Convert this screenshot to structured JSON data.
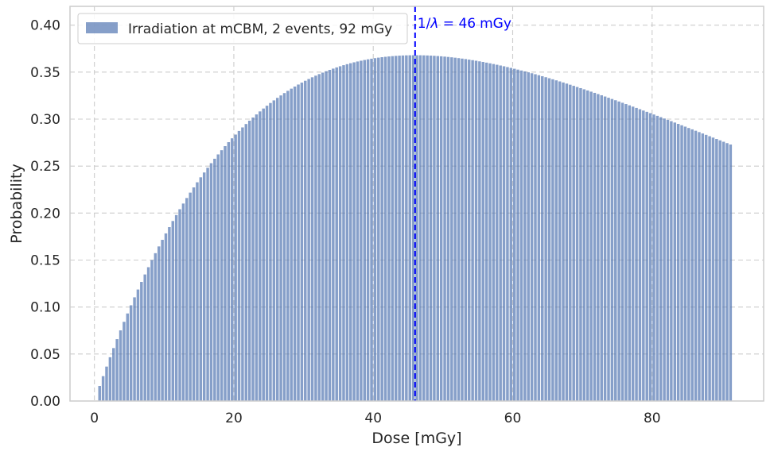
{
  "chart_data": {
    "type": "bar",
    "title": "",
    "xlabel": "Dose [mGy]",
    "ylabel": "Probability",
    "xlim": [
      -3.5,
      96
    ],
    "ylim": [
      0,
      0.42
    ],
    "xticks": [
      0,
      20,
      40,
      60,
      80
    ],
    "xtick_labels": [
      "0",
      "20",
      "40",
      "60",
      "80"
    ],
    "yticks": [
      0.0,
      0.05,
      0.1,
      0.15,
      0.2,
      0.25,
      0.3,
      0.35,
      0.4
    ],
    "ytick_labels": [
      "0.00",
      "0.05",
      "0.10",
      "0.15",
      "0.20",
      "0.25",
      "0.30",
      "0.35",
      "0.40"
    ],
    "grid": true,
    "legend_position": "top-left",
    "series": [
      {
        "name": "Irradiation at mCBM, 2 events, 92 mGy",
        "color": "#4c72b0",
        "bin_width": 0.5,
        "bin_start": 0.5,
        "bin_end": 91.5,
        "rate": 0.021739,
        "shape": "x * lambda * exp(1 - x * lambda)",
        "peak_value": 0.368
      }
    ],
    "annotations": [
      {
        "type": "vline",
        "x": 46,
        "color": "#0000ff",
        "label_prefix": "1/",
        "label_symbol": "λ",
        "label_suffix": " = 46",
        "label_unit": "mGy"
      }
    ]
  }
}
